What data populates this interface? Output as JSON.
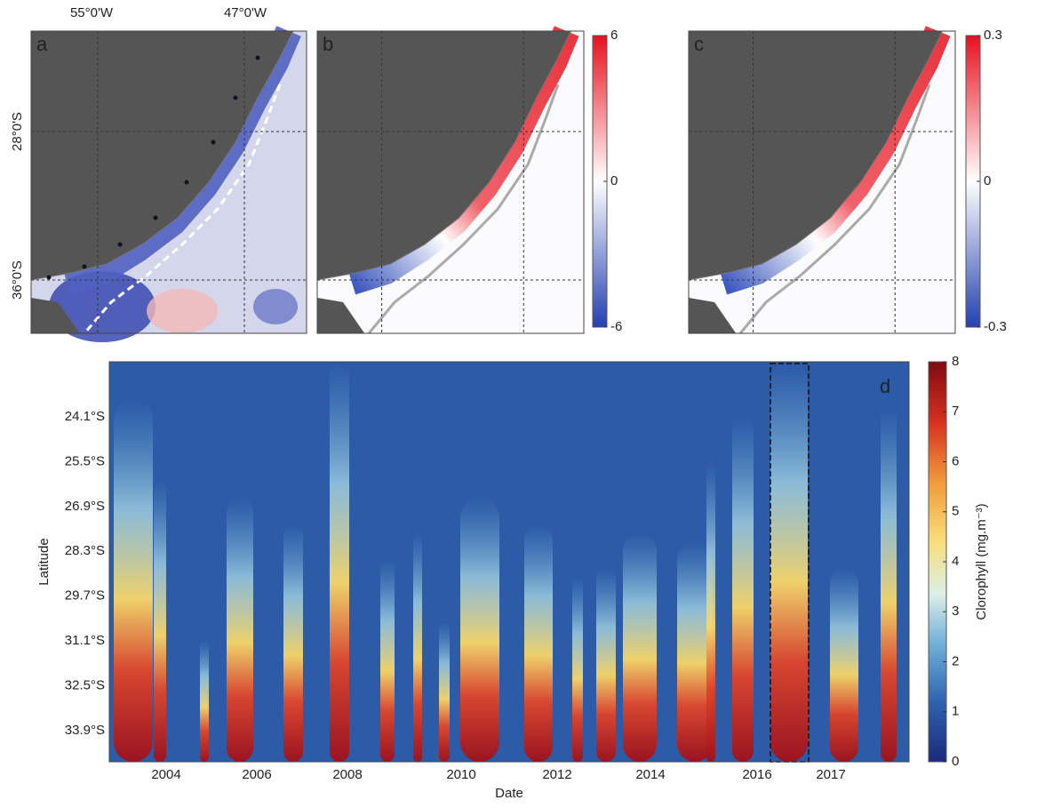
{
  "maps": {
    "panel_labels": [
      "a",
      "b",
      "c"
    ],
    "lon_ticks": [
      "55°0'W",
      "47°0'W"
    ],
    "lat_ticks": [
      "28°0'S",
      "36°0'S"
    ],
    "colorbars": [
      {
        "lim": [
          -6,
          6
        ],
        "ticks": [
          -6,
          0,
          6
        ]
      },
      {
        "lim": [
          -0.3,
          0.3
        ],
        "ticks": [
          -0.3,
          0,
          0.3
        ]
      }
    ]
  },
  "hovmoller": {
    "panel_label": "d",
    "x_label": "Date",
    "y_label": "Latitude",
    "x_ticks": [
      "2004",
      "2006",
      "2008",
      "2010",
      "2012",
      "2014",
      "2016",
      "2017"
    ],
    "y_ticks": [
      "24.1°S",
      "25.5°S",
      "26.9°S",
      "28.3°S",
      "29.7°S",
      "31.1°S",
      "32.5°S",
      "33.9°S"
    ],
    "colorbar": {
      "label": "Clorophyll (mg.m⁻³)",
      "lim": [
        0,
        8
      ],
      "ticks": [
        0,
        1,
        2,
        3,
        4,
        5,
        6,
        7,
        8
      ]
    }
  }
}
